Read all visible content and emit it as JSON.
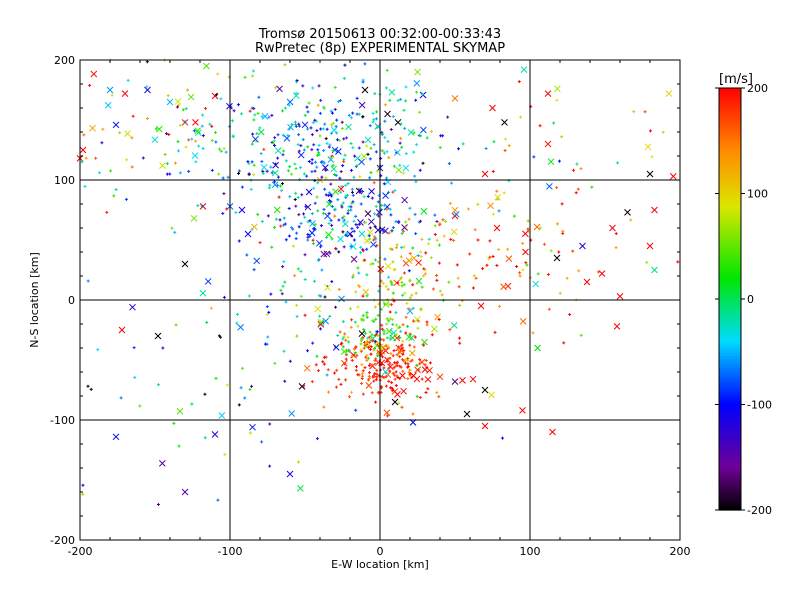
{
  "chart_data": {
    "type": "scatter",
    "title": "Tromsø 20150613 00:32:00-00:33:43",
    "subtitle": "RwPretec (8p) EXPERIMENTAL SKYMAP",
    "xlabel": "E-W location [km]",
    "ylabel": "N-S location [km]",
    "xlim": [
      -200,
      200
    ],
    "ylim": [
      -200,
      200
    ],
    "xticks": [
      -200,
      -100,
      0,
      100,
      200
    ],
    "yticks": [
      -200,
      -100,
      0,
      100,
      200
    ],
    "grid_lines_x": [
      -100,
      0,
      100
    ],
    "grid_lines_y": [
      -100,
      0,
      100
    ],
    "colorbar": {
      "label": "[m/s]",
      "range": [
        -200,
        200
      ],
      "ticks": [
        200,
        100,
        0,
        -100,
        -200
      ],
      "colormap": "rainbow (black-purple-blue-cyan-green-yellow-red)"
    },
    "points": [
      {
        "x": -180,
        "y": 175,
        "v": -60,
        "m": "x"
      },
      {
        "x": -176,
        "y": 146,
        "v": -100,
        "m": "x"
      },
      {
        "x": -170,
        "y": 172,
        "v": 200,
        "m": "x"
      },
      {
        "x": -155,
        "y": 175,
        "v": -120,
        "m": "x"
      },
      {
        "x": -145,
        "y": 112,
        "v": 80,
        "m": "x"
      },
      {
        "x": -140,
        "y": 165,
        "v": -50,
        "m": "x"
      },
      {
        "x": -130,
        "y": 148,
        "v": 180,
        "m": "x"
      },
      {
        "x": -110,
        "y": 170,
        "v": 200,
        "m": "x"
      },
      {
        "x": -123,
        "y": 148,
        "v": 200,
        "m": "x"
      },
      {
        "x": -118,
        "y": 78,
        "v": 200,
        "m": "x"
      },
      {
        "x": -124,
        "y": 68,
        "v": 60,
        "m": "x"
      },
      {
        "x": -92,
        "y": 75,
        "v": -110,
        "m": "x"
      },
      {
        "x": -70,
        "y": 96,
        "v": -60,
        "m": "x"
      },
      {
        "x": -50,
        "y": 146,
        "v": -90,
        "m": "x"
      },
      {
        "x": -30,
        "y": 125,
        "v": -80,
        "m": "x"
      },
      {
        "x": -15,
        "y": 118,
        "v": -20,
        "m": "x"
      },
      {
        "x": -10,
        "y": 175,
        "v": -200,
        "m": "x"
      },
      {
        "x": 5,
        "y": 155,
        "v": -190,
        "m": "x"
      },
      {
        "x": 12,
        "y": 148,
        "v": -200,
        "m": "x"
      },
      {
        "x": 25,
        "y": 190,
        "v": 60,
        "m": "x"
      },
      {
        "x": 50,
        "y": 168,
        "v": 150,
        "m": "x"
      },
      {
        "x": 75,
        "y": 160,
        "v": 200,
        "m": "x"
      },
      {
        "x": 83,
        "y": 148,
        "v": -200,
        "m": "x"
      },
      {
        "x": 96,
        "y": 192,
        "v": -20,
        "m": "x"
      },
      {
        "x": 112,
        "y": 172,
        "v": 200,
        "m": "x"
      },
      {
        "x": 112,
        "y": 130,
        "v": 190,
        "m": "x"
      },
      {
        "x": 180,
        "y": 105,
        "v": -200,
        "m": "x"
      },
      {
        "x": 70,
        "y": 105,
        "v": 200,
        "m": "x"
      },
      {
        "x": 50,
        "y": 70,
        "v": 200,
        "m": "x"
      },
      {
        "x": 78,
        "y": 60,
        "v": 200,
        "m": "x"
      },
      {
        "x": 97,
        "y": 40,
        "v": 200,
        "m": "x"
      },
      {
        "x": 118,
        "y": 35,
        "v": -200,
        "m": "x"
      },
      {
        "x": 135,
        "y": 45,
        "v": -120,
        "m": "x"
      },
      {
        "x": 155,
        "y": 60,
        "v": 200,
        "m": "x"
      },
      {
        "x": 165,
        "y": 73,
        "v": -200,
        "m": "x"
      },
      {
        "x": 180,
        "y": 45,
        "v": 200,
        "m": "x"
      },
      {
        "x": 183,
        "y": 75,
        "v": 200,
        "m": "x"
      },
      {
        "x": 148,
        "y": 22,
        "v": 200,
        "m": "x"
      },
      {
        "x": 160,
        "y": 3,
        "v": 200,
        "m": "x"
      },
      {
        "x": 183,
        "y": 25,
        "v": -10,
        "m": "x"
      },
      {
        "x": 138,
        "y": 15,
        "v": 200,
        "m": "x"
      },
      {
        "x": 158,
        "y": -22,
        "v": 200,
        "m": "x"
      },
      {
        "x": 105,
        "y": -40,
        "v": 20,
        "m": "x"
      },
      {
        "x": 115,
        "y": -110,
        "v": 200,
        "m": "x"
      },
      {
        "x": 95,
        "y": -92,
        "v": 200,
        "m": "x"
      },
      {
        "x": 70,
        "y": -105,
        "v": 200,
        "m": "x"
      },
      {
        "x": 58,
        "y": -95,
        "v": -200,
        "m": "x"
      },
      {
        "x": 70,
        "y": -75,
        "v": -200,
        "m": "x"
      },
      {
        "x": 50,
        "y": -68,
        "v": -170,
        "m": "x"
      },
      {
        "x": 40,
        "y": -64,
        "v": 180,
        "m": "x"
      },
      {
        "x": 30,
        "y": -58,
        "v": 200,
        "m": "x"
      },
      {
        "x": 55,
        "y": -67,
        "v": 200,
        "m": "x"
      },
      {
        "x": 62,
        "y": -66,
        "v": 200,
        "m": "x"
      },
      {
        "x": 10,
        "y": -85,
        "v": -200,
        "m": "x"
      },
      {
        "x": 22,
        "y": -102,
        "v": -100,
        "m": "x"
      },
      {
        "x": -52,
        "y": -72,
        "v": -200,
        "m": "x"
      },
      {
        "x": -60,
        "y": -145,
        "v": -120,
        "m": "x"
      },
      {
        "x": -110,
        "y": -112,
        "v": -130,
        "m": "x"
      },
      {
        "x": -130,
        "y": -160,
        "v": -150,
        "m": "x"
      },
      {
        "x": -176,
        "y": -114,
        "v": -100,
        "m": "x"
      },
      {
        "x": -172,
        "y": -25,
        "v": 200,
        "m": "x"
      },
      {
        "x": -165,
        "y": -6,
        "v": -120,
        "m": "x"
      },
      {
        "x": -148,
        "y": -30,
        "v": -200,
        "m": "x"
      },
      {
        "x": -85,
        "y": -106,
        "v": -90,
        "m": "x"
      },
      {
        "x": -12,
        "y": -28,
        "v": -200,
        "m": "x"
      },
      {
        "x": -5,
        "y": -55,
        "v": 200,
        "m": "x"
      },
      {
        "x": 5,
        "y": -50,
        "v": 200,
        "m": "x"
      },
      {
        "x": 15,
        "y": -63,
        "v": 200,
        "m": "x"
      },
      {
        "x": -2,
        "y": -38,
        "v": 50,
        "m": "x"
      },
      {
        "x": -20,
        "y": 55,
        "v": -110,
        "m": "x"
      },
      {
        "x": -35,
        "y": 70,
        "v": -80,
        "m": "x"
      },
      {
        "x": -8,
        "y": 72,
        "v": -180,
        "m": "x"
      },
      {
        "x": -88,
        "y": 55,
        "v": -110,
        "m": "x"
      },
      {
        "x": -100,
        "y": 78,
        "v": -70,
        "m": "x"
      },
      {
        "x": -130,
        "y": 30,
        "v": -200,
        "m": "x"
      },
      {
        "x": -200,
        "y": 118,
        "v": 200,
        "m": "x"
      },
      {
        "x": -198,
        "y": 125,
        "v": 200,
        "m": "x"
      },
      {
        "x": 0,
        "y": 110,
        "v": -150,
        "m": "x"
      },
      {
        "x": -40,
        "y": 100,
        "v": 120,
        "m": "x"
      }
    ],
    "clusters": [
      {
        "cx": -35,
        "cy": 130,
        "sx": 42,
        "sy": 28,
        "n": 330,
        "vmean": -55,
        "vsd": 60
      },
      {
        "cx": -25,
        "cy": 65,
        "sx": 30,
        "sy": 22,
        "n": 200,
        "vmean": -75,
        "vsd": 55
      },
      {
        "cx": 2,
        "cy": -55,
        "sx": 18,
        "sy": 16,
        "n": 230,
        "vmean": 185,
        "vsd": 25
      },
      {
        "cx": -5,
        "cy": -28,
        "sx": 16,
        "sy": 12,
        "n": 90,
        "vmean": 30,
        "vsd": 55
      },
      {
        "cx": 8,
        "cy": 15,
        "sx": 16,
        "sy": 28,
        "n": 80,
        "vmean": 90,
        "vsd": 60
      },
      {
        "cx": 60,
        "cy": 40,
        "sx": 55,
        "sy": 40,
        "n": 140,
        "vmean": 150,
        "vsd": 65
      },
      {
        "cx": -135,
        "cy": 135,
        "sx": 45,
        "sy": 35,
        "n": 110,
        "vmean": 40,
        "vsd": 110
      },
      {
        "cx": 120,
        "cy": 80,
        "sx": 60,
        "sy": 60,
        "n": 55,
        "vmean": 130,
        "vsd": 90
      },
      {
        "cx": -100,
        "cy": -60,
        "sx": 55,
        "sy": 55,
        "n": 60,
        "vmean": -70,
        "vsd": 110
      },
      {
        "cx": -60,
        "cy": -10,
        "sx": 30,
        "sy": 25,
        "n": 45,
        "vmean": 20,
        "vsd": 110
      }
    ]
  }
}
